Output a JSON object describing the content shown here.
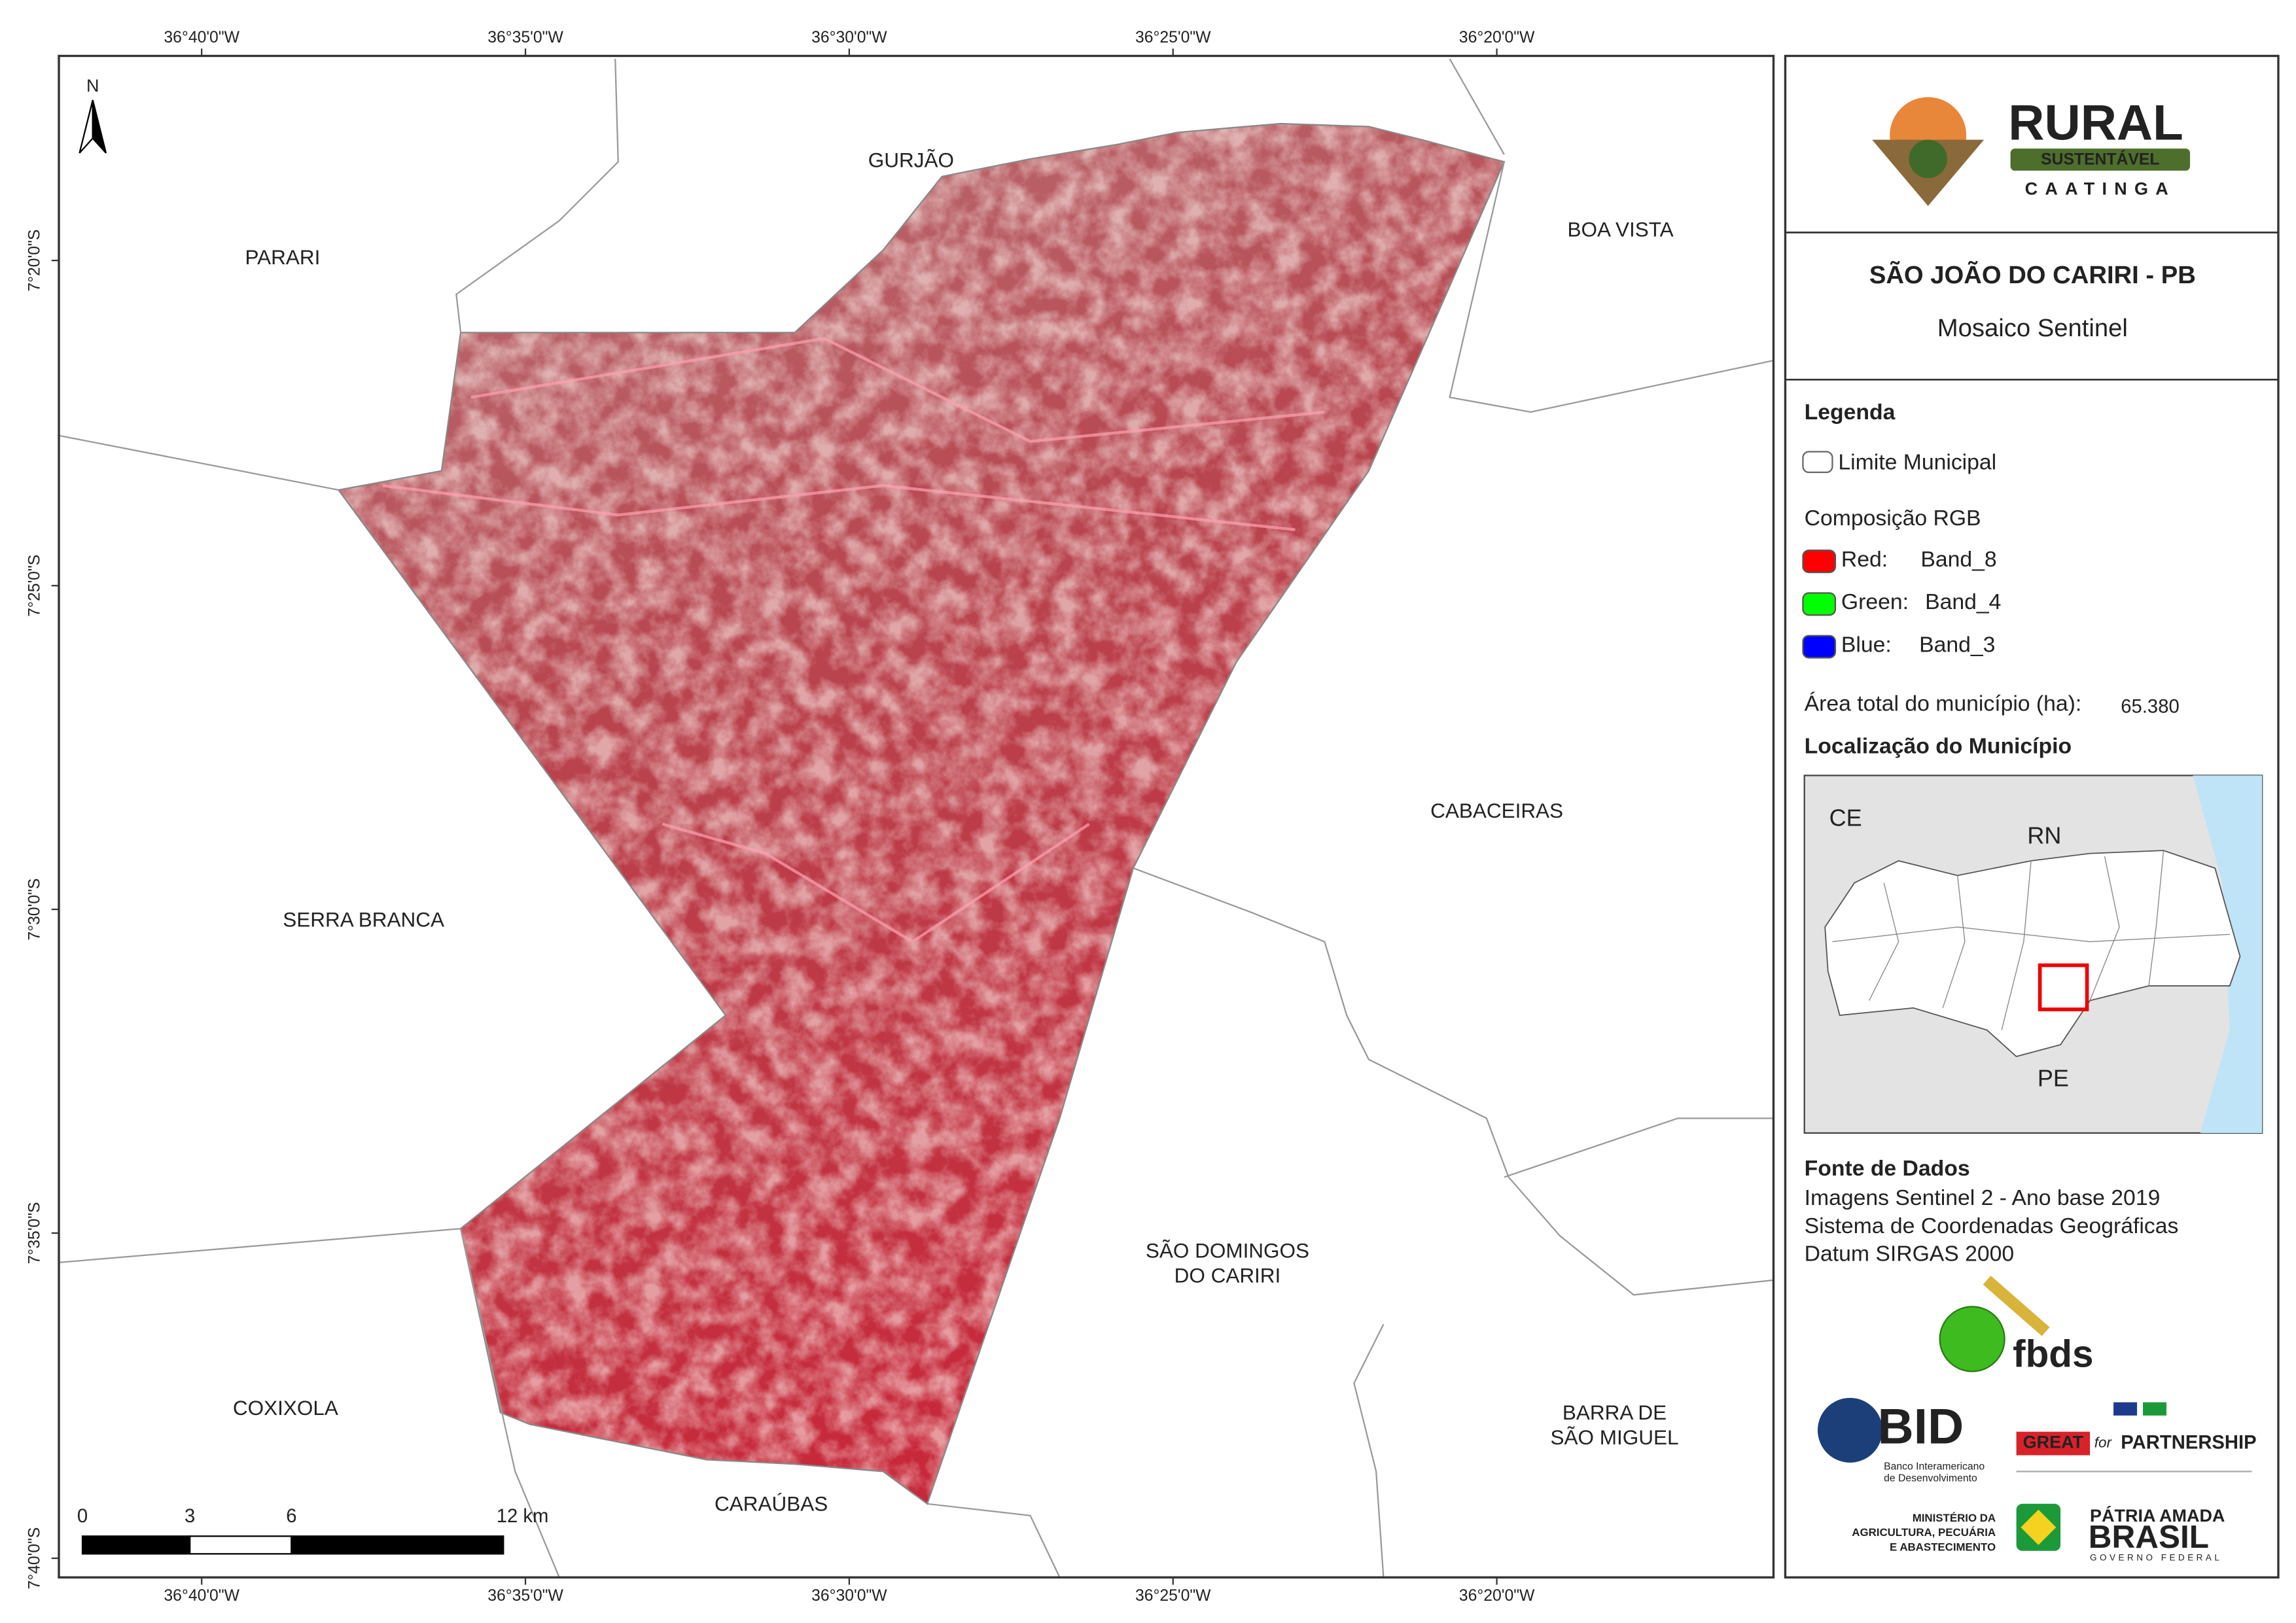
{
  "map": {
    "longitude_labels": [
      "36°40'0\"W",
      "36°35'0\"W",
      "36°30'0\"W",
      "36°25'0\"W",
      "36°20'0\"W"
    ],
    "latitude_labels": [
      "7°20'0\"S",
      "7°25'0\"S",
      "7°30'0\"S",
      "7°35'0\"S",
      "7°40'0\"S"
    ],
    "north_arrow": "N",
    "municipalities": {
      "gurjao": [
        "GURJÃO"
      ],
      "parari": [
        "PARARI"
      ],
      "boa_vista": [
        "BOA VISTA"
      ],
      "cabaceiras": [
        "CABACEIRAS"
      ],
      "serra_branca": [
        "SERRA BRANCA"
      ],
      "sao_domingos": [
        "SÃO DOMINGOS",
        "DO CARIRI"
      ],
      "coxixola": [
        "COXIXOLA"
      ],
      "barra": [
        "BARRA DE",
        "SÃO MIGUEL"
      ],
      "caraubas": [
        "CARAÚBAS"
      ]
    },
    "scale_bar": [
      "0",
      "3",
      "6",
      "12 km"
    ]
  },
  "panel": {
    "logo": {
      "rural": "RURAL",
      "sustentavel": "SUSTENTÁVEL",
      "caatinga": "CAATINGA"
    },
    "title": "SÃO JOÃO DO CARIRI - PB",
    "subtitle": "Mosaico Sentinel",
    "legend": {
      "heading": "Legenda",
      "boundary": "Limite Municipal",
      "composition": "Composição RGB",
      "bands": [
        [
          "Red:",
          "Band_8"
        ],
        [
          "Green:",
          "Band_4"
        ],
        [
          "Blue:",
          "Band_3"
        ]
      ],
      "area_label": "Área total do município (ha):",
      "area_value": "65.380"
    },
    "location": {
      "heading": "Localização do Município",
      "states": [
        "CE",
        "RN",
        "PE"
      ]
    },
    "sources": {
      "heading": "Fonte de Dados",
      "lines": [
        "Imagens Sentinel 2 - Ano base 2019",
        "Sistema de Coordenadas Geográficas",
        "Datum SIRGAS 2000"
      ]
    },
    "partners": {
      "fbds": "fbds",
      "bid": "BID",
      "bid_name": [
        "Banco Interamericano",
        "de Desenvolvimento"
      ],
      "great": "GREAT",
      "for": "for",
      "partnership": "PARTNERSHIP",
      "ministry": [
        "MINISTÉRIO DA",
        "AGRICULTURA, PECUÁRIA",
        "E ABASTECIMENTO"
      ],
      "patria": "PÁTRIA AMADA",
      "brasil": "BRASIL",
      "governo": "GOVERNO FEDERAL"
    }
  }
}
